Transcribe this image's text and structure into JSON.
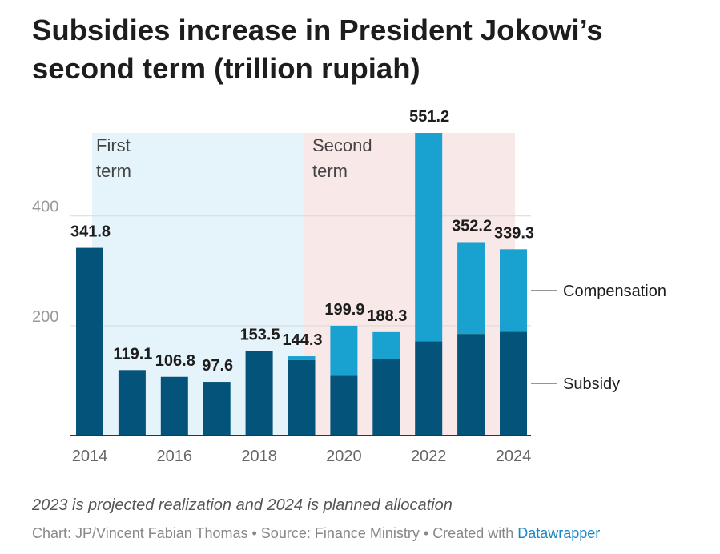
{
  "title": "Subsidies increase in President Jokowi’s second term (trillion rupiah)",
  "note": "2023 is projected realization and 2024 is planned allocation",
  "credit": {
    "author": "Chart: JP/Vincent Fabian Thomas",
    "sep1": " • ",
    "source": "Source: Finance Ministry",
    "sep2": "  • ",
    "created": "Created with ",
    "tool": "Datawrapper"
  },
  "chart_data": {
    "type": "bar",
    "stacked": true,
    "categories": [
      "2014",
      "2015",
      "2016",
      "2017",
      "2018",
      "2019",
      "2020",
      "2021",
      "2022",
      "2023",
      "2024"
    ],
    "x_tick_labels": [
      "2014",
      "2016",
      "2018",
      "2020",
      "2022",
      "2024"
    ],
    "series": [
      {
        "name": "Subsidy",
        "color": "#03537a",
        "values": [
          341.8,
          119.1,
          106.8,
          97.6,
          153.5,
          137.5,
          108.8,
          140.0,
          171.7,
          185.0,
          189.1
        ]
      },
      {
        "name": "Compensation",
        "color": "#19a2d0",
        "values": [
          0,
          0,
          0,
          0,
          0,
          6.8,
          91.1,
          48.3,
          379.5,
          167.2,
          150.2
        ]
      }
    ],
    "totals": [
      "341.8",
      "119.1",
      "106.8",
      "97.6",
      "153.5",
      "144.3",
      "199.9",
      "188.3",
      "551.2",
      "352.2",
      "339.3"
    ],
    "y_ticks": [
      "200",
      "400"
    ],
    "ylim": [
      0,
      551.2
    ],
    "grid": true,
    "legend_placement": "right (labels attached to 2024 bar)",
    "bands": [
      {
        "label_lines": [
          "First",
          "term"
        ],
        "start_year": 2014,
        "end_year": 2019,
        "color": "#e5f3fa"
      },
      {
        "label_lines": [
          "Second",
          "term"
        ],
        "start_year": 2019,
        "end_year": 2024,
        "color": "#f8e8e8"
      }
    ]
  }
}
